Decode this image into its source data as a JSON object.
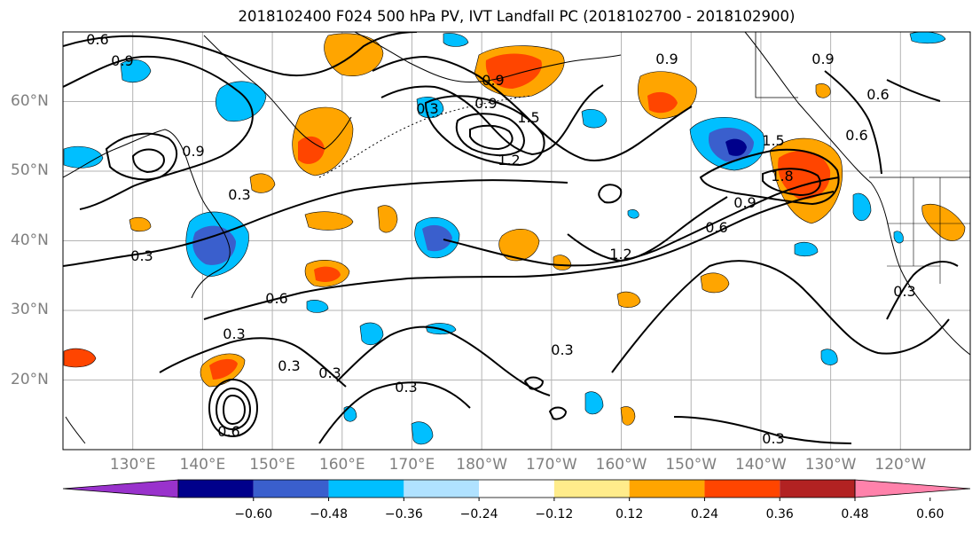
{
  "title": "2018102400 F024 500 hPa PV, IVT Landfall PC (2018102700 - 2018102900)",
  "map": {
    "lon_range": [
      120,
      250
    ],
    "lat_range": [
      10,
      70
    ],
    "lat_labels": [
      {
        "lat": 60,
        "text": "60°N"
      },
      {
        "lat": 50,
        "text": "50°N"
      },
      {
        "lat": 40,
        "text": "40°N"
      },
      {
        "lat": 30,
        "text": "30°N"
      },
      {
        "lat": 20,
        "text": "20°N"
      }
    ],
    "lon_labels": [
      {
        "lon": 130,
        "text": "130°E"
      },
      {
        "lon": 140,
        "text": "140°E"
      },
      {
        "lon": 150,
        "text": "150°E"
      },
      {
        "lon": 160,
        "text": "160°E"
      },
      {
        "lon": 170,
        "text": "170°E"
      },
      {
        "lon": 180,
        "text": "180°W"
      },
      {
        "lon": 190,
        "text": "170°W"
      },
      {
        "lon": 200,
        "text": "160°W"
      },
      {
        "lon": 210,
        "text": "150°W"
      },
      {
        "lon": 220,
        "text": "140°W"
      },
      {
        "lon": 230,
        "text": "130°W"
      },
      {
        "lon": 240,
        "text": "120°W"
      }
    ],
    "contour_labels": [
      "0.6",
      "0.9",
      "0.3",
      "1.2",
      "1.5",
      "1.8"
    ]
  },
  "colorbar": {
    "levels": [
      -0.72,
      -0.6,
      -0.48,
      -0.36,
      -0.24,
      -0.12,
      0.12,
      0.24,
      0.36,
      0.48,
      0.6,
      0.72
    ],
    "colors": [
      "#9932cc",
      "#00008b",
      "#3a5fcd",
      "#00bfff",
      "#b0e2ff",
      "#ffffff",
      "#ffec8b",
      "#ffa500",
      "#ff4500",
      "#b22222",
      "#ff82ab"
    ],
    "tick_labels": [
      "−0.60",
      "−0.48",
      "−0.36",
      "−0.24",
      "−0.12",
      "0.12",
      "0.24",
      "0.36",
      "0.48",
      "0.60"
    ]
  },
  "colors": {
    "warm_light": "#ffec8b",
    "warm_mid": "#ffa500",
    "warm_strong": "#ff4500",
    "cool_light": "#b0e2ff",
    "cool_mid": "#00bfff",
    "cool_strong": "#3a5fcd",
    "cool_deep": "#00008b"
  }
}
